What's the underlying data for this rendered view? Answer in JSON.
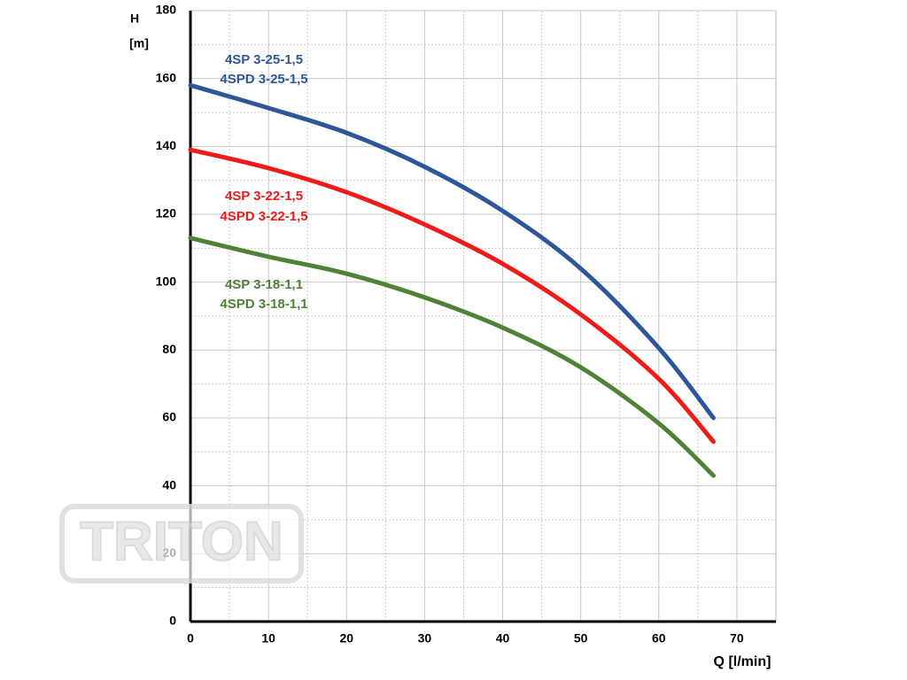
{
  "chart_data": {
    "type": "line",
    "y_label": [
      "H",
      "[m]"
    ],
    "x_label": "Q [l/min]",
    "watermark": "TRITON",
    "xlim": [
      0,
      75
    ],
    "xticks": [
      0,
      10,
      20,
      30,
      40,
      50,
      60,
      70
    ],
    "ylim": [
      0,
      180
    ],
    "yticks": [
      0,
      20,
      40,
      60,
      80,
      100,
      120,
      140,
      160,
      180
    ],
    "grid": true,
    "x": [
      0,
      10,
      20,
      30,
      40,
      50,
      60,
      67
    ],
    "series": [
      {
        "name": "4SP 3-25-1,5",
        "name_alt": "4SPD 3-25-1,5",
        "color": "#2e579a",
        "values": [
          158,
          151.3,
          144,
          134,
          121,
          104,
          80.6,
          60
        ]
      },
      {
        "name": "4SP 3-22-1,5",
        "name_alt": "4SPD 3-22-1,5",
        "color": "#f01a1a",
        "values": [
          139,
          133.6,
          126.5,
          117,
          105.4,
          90.5,
          71.5,
          53
        ]
      },
      {
        "name": "4SP 3-18-1,1",
        "name_alt": "4SPD 3-18-1,1",
        "color": "#4f8136",
        "values": [
          113,
          107.5,
          102.5,
          95.5,
          86.6,
          74.9,
          58.4,
          43
        ]
      }
    ]
  }
}
